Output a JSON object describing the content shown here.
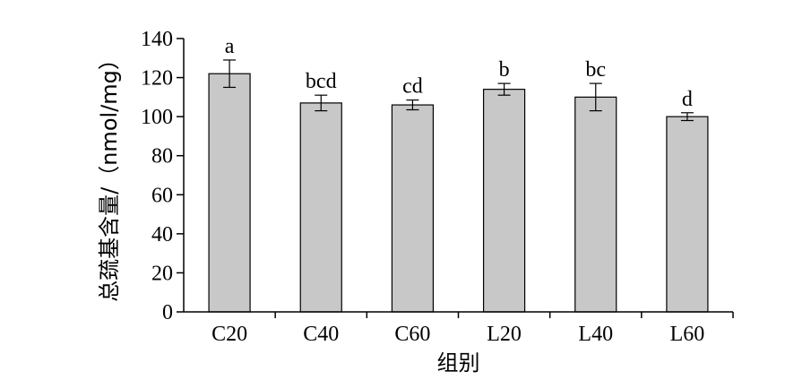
{
  "chart_data": {
    "type": "bar",
    "categories": [
      "C20",
      "C40",
      "C60",
      "L20",
      "L40",
      "L60"
    ],
    "values": [
      122,
      107,
      106,
      114,
      110,
      100
    ],
    "errors": [
      7,
      4,
      2.5,
      3,
      7,
      2
    ],
    "significance": [
      "a",
      "bcd",
      "cd",
      "b",
      "bc",
      "d"
    ],
    "xlabel": "组别",
    "ylabel": "总巯基含量/（nmol/mg）",
    "ylim": [
      0,
      140
    ],
    "yticks": [
      "0",
      "20",
      "40",
      "60",
      "80",
      "100",
      "120",
      "140"
    ],
    "grid": false,
    "legend": "none",
    "bar_color": "#c8c8c8"
  }
}
